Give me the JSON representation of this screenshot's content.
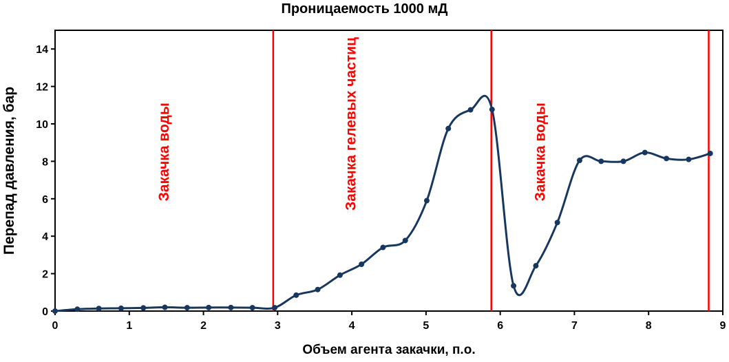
{
  "chart_data": {
    "type": "line",
    "title": "Проницаемость 1000 мД",
    "xlabel": "Объем агента закачки, п.о.",
    "ylabel": "Перепад давления, бар",
    "xlim": [
      0,
      9
    ],
    "ylim": [
      0,
      15
    ],
    "xticks": [
      "0",
      "1",
      "2",
      "3",
      "4",
      "5",
      "6",
      "7",
      "8",
      "9"
    ],
    "yticks": [
      "0",
      "2",
      "4",
      "6",
      "8",
      "10",
      "12",
      "14"
    ],
    "grid": false,
    "series": [
      {
        "x": [
          0,
          0.3,
          0.59,
          0.89,
          1.19,
          1.48,
          1.78,
          2.07,
          2.37,
          2.66,
          2.96,
          3.25,
          3.54,
          3.84,
          4.13,
          4.42,
          4.72,
          5.01,
          5.3,
          5.6,
          5.89,
          6.18,
          6.48,
          6.77,
          7.07,
          7.36,
          7.66,
          7.95,
          8.24,
          8.54,
          8.83
        ],
        "y": [
          0,
          0.1,
          0.14,
          0.15,
          0.17,
          0.2,
          0.18,
          0.19,
          0.19,
          0.18,
          0.18,
          0.85,
          1.15,
          1.92,
          2.5,
          3.4,
          3.77,
          5.9,
          9.75,
          10.75,
          10.77,
          1.35,
          2.42,
          4.73,
          8.05,
          8.0,
          8.0,
          8.47,
          8.15,
          8.1,
          8.42
        ]
      }
    ],
    "vlines": [
      2.94,
      5.88,
      8.81
    ],
    "annotations": [
      {
        "text": "Закачка воды",
        "x": 1.48,
        "y": 8.5
      },
      {
        "text": "Закачка гелевых частиц",
        "x": 4.0,
        "y": 10.0
      },
      {
        "text": "Закачка воды",
        "x": 6.55,
        "y": 8.5
      }
    ],
    "colors": {
      "line": "#17375e",
      "vlines": "#ff0000",
      "annotations": "#ff0000",
      "axes": "#000000"
    }
  }
}
